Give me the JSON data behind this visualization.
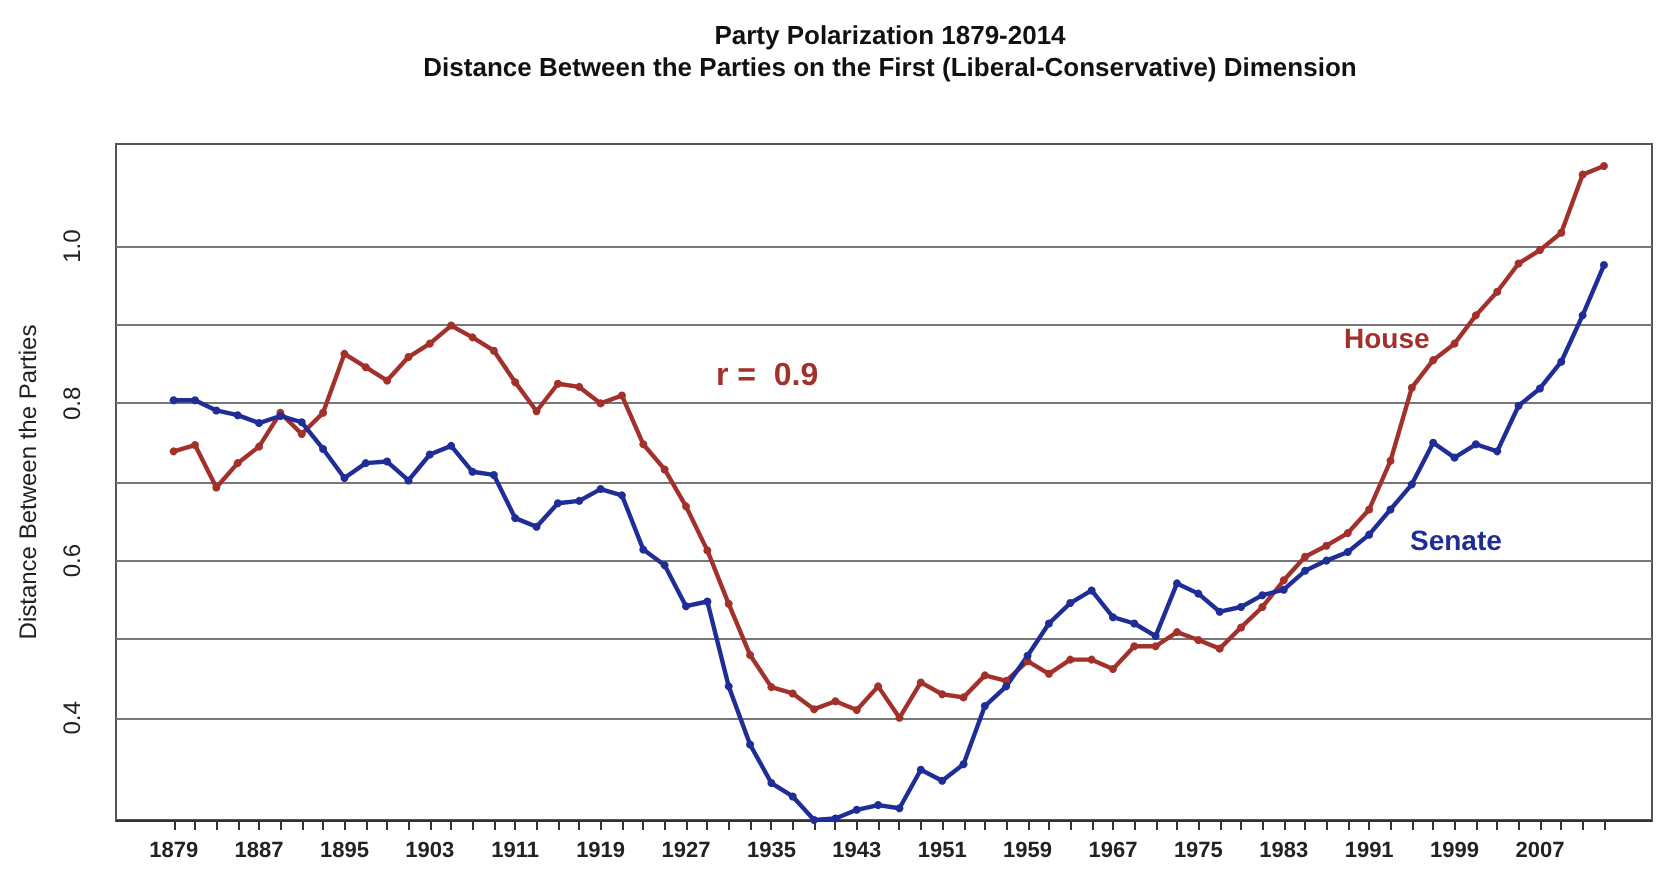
{
  "chart_data": {
    "type": "line",
    "title": "Party Polarization 1879-2014",
    "subtitle": "Distance Between the Parties on the First (Liberal-Conservative) Dimension",
    "ylabel": "Distance Between the Parties",
    "annotations": [
      "r =  0.9"
    ],
    "x": [
      1879,
      1881,
      1883,
      1885,
      1887,
      1889,
      1891,
      1893,
      1895,
      1897,
      1899,
      1901,
      1903,
      1905,
      1907,
      1909,
      1911,
      1913,
      1915,
      1917,
      1919,
      1921,
      1923,
      1925,
      1927,
      1929,
      1931,
      1933,
      1935,
      1937,
      1939,
      1941,
      1943,
      1945,
      1947,
      1949,
      1951,
      1953,
      1955,
      1957,
      1959,
      1961,
      1963,
      1965,
      1967,
      1969,
      1971,
      1973,
      1975,
      1977,
      1979,
      1981,
      1983,
      1985,
      1987,
      1989,
      1991,
      1993,
      1995,
      1997,
      1999,
      2001,
      2003,
      2005,
      2007,
      2009,
      2011,
      2013
    ],
    "series": [
      {
        "name": "House",
        "color": "#a3312b",
        "values": [
          0.739,
          0.747,
          0.693,
          0.724,
          0.745,
          0.788,
          0.761,
          0.788,
          0.863,
          0.846,
          0.829,
          0.859,
          0.876,
          0.899,
          0.884,
          0.867,
          0.827,
          0.79,
          0.825,
          0.821,
          0.8,
          0.81,
          0.748,
          0.716,
          0.669,
          0.613,
          0.545,
          0.48,
          0.439,
          0.431,
          0.411,
          0.421,
          0.41,
          0.44,
          0.4,
          0.445,
          0.43,
          0.426,
          0.454,
          0.447,
          0.472,
          0.456,
          0.474,
          0.474,
          0.462,
          0.491,
          0.491,
          0.509,
          0.499,
          0.488,
          0.515,
          0.541,
          0.575,
          0.605,
          0.619,
          0.635,
          0.665,
          0.727,
          0.82,
          0.855,
          0.876,
          0.912,
          0.942,
          0.978,
          0.995,
          1.017,
          1.091,
          1.102
        ]
      },
      {
        "name": "Senate",
        "color": "#1f2d96",
        "values": [
          0.804,
          0.804,
          0.791,
          0.785,
          0.775,
          0.784,
          0.776,
          0.742,
          0.705,
          0.724,
          0.726,
          0.702,
          0.735,
          0.746,
          0.713,
          0.709,
          0.654,
          0.643,
          0.673,
          0.676,
          0.691,
          0.683,
          0.614,
          0.594,
          0.542,
          0.548,
          0.44,
          0.366,
          0.317,
          0.3,
          0.27,
          0.272,
          0.283,
          0.289,
          0.285,
          0.334,
          0.32,
          0.341,
          0.415,
          0.44,
          0.479,
          0.52,
          0.546,
          0.562,
          0.528,
          0.52,
          0.504,
          0.571,
          0.558,
          0.535,
          0.541,
          0.556,
          0.563,
          0.587,
          0.6,
          0.611,
          0.633,
          0.665,
          0.697,
          0.75,
          0.731,
          0.748,
          0.739,
          0.797,
          0.819,
          0.853,
          0.912,
          0.976
        ]
      }
    ],
    "xlim": [
      1873.6,
      2017.5
    ],
    "xticks": [
      1879,
      {
        "value": 1881,
        "label": null
      },
      {
        "value": 1883,
        "label": null
      },
      {
        "value": 1885,
        "label": null
      },
      1887,
      {
        "value": 1889,
        "label": null
      },
      {
        "value": 1891,
        "label": null
      },
      {
        "value": 1893,
        "label": null
      },
      1895,
      {
        "value": 1897,
        "label": null
      },
      {
        "value": 1899,
        "label": null
      },
      {
        "value": 1901,
        "label": null
      },
      1903,
      {
        "value": 1905,
        "label": null
      },
      {
        "value": 1907,
        "label": null
      },
      {
        "value": 1909,
        "label": null
      },
      1911,
      {
        "value": 1913,
        "label": null
      },
      {
        "value": 1915,
        "label": null
      },
      {
        "value": 1917,
        "label": null
      },
      1919,
      {
        "value": 1921,
        "label": null
      },
      {
        "value": 1923,
        "label": null
      },
      {
        "value": 1925,
        "label": null
      },
      1927,
      {
        "value": 1929,
        "label": null
      },
      {
        "value": 1931,
        "label": null
      },
      {
        "value": 1933,
        "label": null
      },
      1935,
      {
        "value": 1937,
        "label": null
      },
      {
        "value": 1939,
        "label": null
      },
      {
        "value": 1941,
        "label": null
      },
      1943,
      {
        "value": 1945,
        "label": null
      },
      {
        "value": 1947,
        "label": null
      },
      {
        "value": 1949,
        "label": null
      },
      1951,
      {
        "value": 1953,
        "label": null
      },
      {
        "value": 1955,
        "label": null
      },
      {
        "value": 1957,
        "label": null
      },
      1959,
      {
        "value": 1961,
        "label": null
      },
      {
        "value": 1963,
        "label": null
      },
      {
        "value": 1965,
        "label": null
      },
      1967,
      {
        "value": 1969,
        "label": null
      },
      {
        "value": 1971,
        "label": null
      },
      {
        "value": 1973,
        "label": null
      },
      1975,
      {
        "value": 1977,
        "label": null
      },
      {
        "value": 1979,
        "label": null
      },
      {
        "value": 1981,
        "label": null
      },
      1983,
      {
        "value": 1985,
        "label": null
      },
      {
        "value": 1987,
        "label": null
      },
      {
        "value": 1989,
        "label": null
      },
      1991,
      {
        "value": 1993,
        "label": null
      },
      {
        "value": 1995,
        "label": null
      },
      {
        "value": 1997,
        "label": null
      },
      1999,
      {
        "value": 2001,
        "label": null
      },
      {
        "value": 2003,
        "label": null
      },
      {
        "value": 2005,
        "label": null
      },
      2007,
      {
        "value": 2009,
        "label": null
      },
      {
        "value": 2011,
        "label": null
      },
      {
        "value": 2013,
        "label": null
      }
    ],
    "ylim": [
      0.27,
      1.13
    ],
    "yticks": [
      0.4,
      {
        "value": 0.5,
        "label": null
      },
      0.6,
      {
        "value": 0.7,
        "label": null
      },
      0.8,
      {
        "value": 0.9,
        "label": null
      },
      {
        "value": 1,
        "label": "1.0"
      }
    ],
    "grid": "y",
    "marker": "circle",
    "line_style": "solid",
    "legend": false
  }
}
